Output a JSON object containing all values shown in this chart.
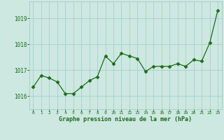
{
  "x": [
    0,
    1,
    2,
    3,
    4,
    5,
    6,
    7,
    8,
    9,
    10,
    11,
    12,
    13,
    14,
    15,
    16,
    17,
    18,
    19,
    20,
    21,
    22,
    23
  ],
  "y": [
    1016.35,
    1016.8,
    1016.7,
    1016.55,
    1016.1,
    1016.1,
    1016.35,
    1016.6,
    1016.75,
    1017.55,
    1017.25,
    1017.65,
    1017.55,
    1017.45,
    1016.95,
    1017.15,
    1017.15,
    1017.15,
    1017.25,
    1017.15,
    1017.4,
    1017.35,
    1018.05,
    1019.3
  ],
  "line_color": "#1e6b1e",
  "marker_color": "#1e6b1e",
  "bg_color": "#cce8e0",
  "grid_color": "#aacfc8",
  "xlabel": "Graphe pression niveau de la mer (hPa)",
  "xlabel_color": "#1e6b1e",
  "tick_color": "#1e6b1e",
  "ylim": [
    1015.5,
    1019.65
  ],
  "yticks": [
    1016,
    1017,
    1018,
    1019
  ],
  "xlim": [
    -0.5,
    23.5
  ],
  "xticks": [
    0,
    1,
    2,
    3,
    4,
    5,
    6,
    7,
    8,
    9,
    10,
    11,
    12,
    13,
    14,
    15,
    16,
    17,
    18,
    19,
    20,
    21,
    22,
    23
  ]
}
